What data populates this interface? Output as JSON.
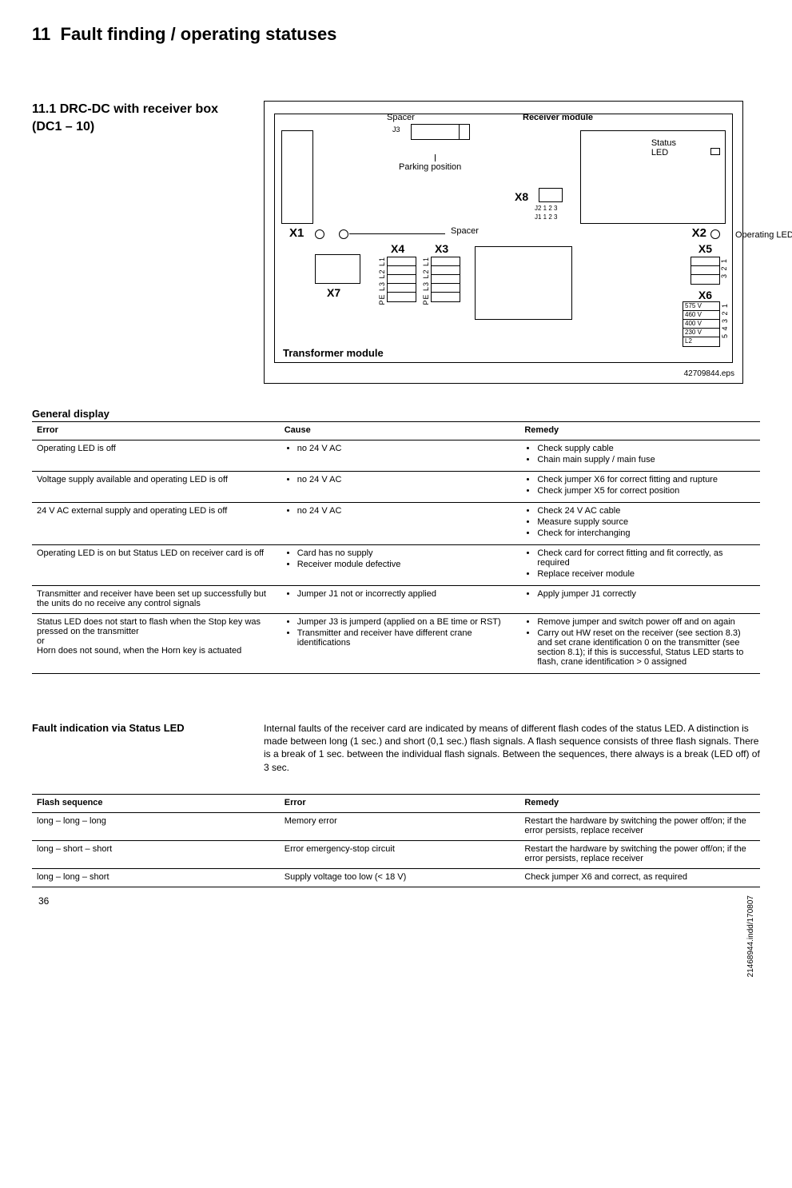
{
  "chapter": {
    "number": "11",
    "title": "Fault finding / operating statuses"
  },
  "section": {
    "number": "11.1",
    "title": "DRC-DC with receiver box (DC1 – 10)"
  },
  "diagram": {
    "labels": {
      "spacer_top": "Spacer",
      "receiver_module": "Receiver module",
      "status_led": "Status\nLED",
      "parking_position": "Parking position",
      "x8": "X8",
      "x1": "X1",
      "spacer_mid": "Spacer",
      "x2": "X2",
      "operating_led": "Operating\nLED",
      "x4": "X4",
      "x3": "X3",
      "x5": "X5",
      "x7": "X7",
      "x6": "X6",
      "v575": "575 V",
      "v460": "460 V",
      "v400": "400 V",
      "v230": "230 V",
      "l2": "L2",
      "j3": "J3",
      "j2": "J2 1 2 3",
      "j1": "J1 1 2 3",
      "pe_left": "PE L3 L2 L1",
      "pe_right": "PE L3 L2 L1",
      "x5_321": "3 2 1",
      "x6_54321": "5 4 3 2 1",
      "transformer_module": "Transformer module"
    },
    "caption": "42709844.eps"
  },
  "general_display": {
    "title": "General display",
    "headers": {
      "c1": "Error",
      "c2": "Cause",
      "c3": "Remedy"
    },
    "rows": [
      {
        "error": "Operating LED is off",
        "cause": [
          "no 24 V AC"
        ],
        "remedy": [
          "Check supply cable",
          "Chain main supply / main fuse"
        ]
      },
      {
        "error": "Voltage supply available and operating LED is off",
        "cause": [
          "no 24 V AC"
        ],
        "remedy": [
          "Check jumper X6 for correct fitting and rupture",
          "Check jumper X5 for correct position"
        ]
      },
      {
        "error": "24 V AC external supply and operating LED is off",
        "cause": [
          "no 24 V AC"
        ],
        "remedy": [
          "Check 24 V AC cable",
          "Measure supply source",
          "Check for interchanging"
        ]
      },
      {
        "error": "Operating LED is on but Status LED on receiver card is off",
        "cause": [
          "Card has no supply",
          "Receiver module defective"
        ],
        "remedy": [
          "Check card for correct fitting and fit correctly, as required",
          "Replace receiver module"
        ]
      },
      {
        "error": "Transmitter and receiver have been set up successfully but the units do no receive any control signals",
        "cause": [
          "Jumper J1 not or incorrectly applied"
        ],
        "remedy": [
          "Apply jumper J1 correctly"
        ]
      },
      {
        "error": "Status LED does not start to flash when the Stop key was pressed on the transmitter\nor\nHorn does not sound, when the Horn key is actuated",
        "cause": [
          "Jumper J3 is jumperd (applied on a BE time or RST)",
          "Transmitter and receiver have different crane identifications"
        ],
        "remedy": [
          "Remove jumper and switch power off and on again",
          "Carry out HW reset on the receiver (see section 8.3) and set crane identification 0 on the transmitter (see section 8.1); if this is successful, Status LED starts to flash, crane identification > 0 assigned"
        ]
      }
    ]
  },
  "fault_section": {
    "heading": "Fault indication via Status LED",
    "body": "Internal faults of the receiver card are indicated by means of different flash codes of the status LED. A distinction is made between long (1 sec.) and short (0,1 sec.) flash signals. A flash sequence consists of three flash signals. There is a break of 1 sec. between the individual flash signals. Between the sequences, there always is a break (LED off) of 3 sec."
  },
  "flash_table": {
    "headers": {
      "c1": "Flash sequence",
      "c2": "Error",
      "c3": "Remedy"
    },
    "rows": [
      {
        "seq": "long – long – long",
        "err": "Memory error",
        "rem": "Restart the hardware by switching the power off/on; if the error persists, replace receiver"
      },
      {
        "seq": "long – short – short",
        "err": "Error emergency-stop circuit",
        "rem": "Restart the hardware by switching the power off/on; if the error persists, replace receiver"
      },
      {
        "seq": "long – long – short",
        "err": "Supply voltage too low (< 18 V)",
        "rem": "Check jumper X6 and correct, as required"
      }
    ]
  },
  "page_number": "36",
  "side_code": "21468944.indd/170807"
}
